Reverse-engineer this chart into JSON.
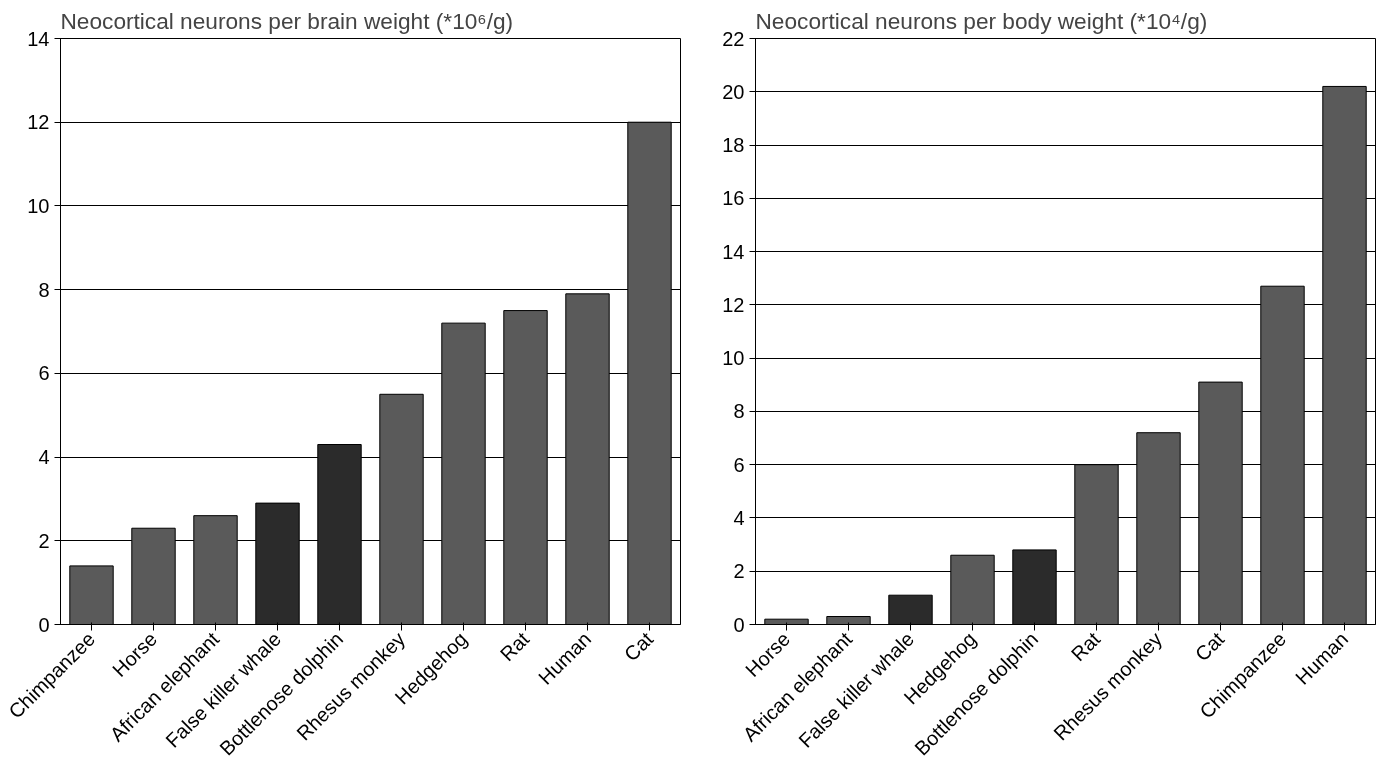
{
  "chart_data": [
    {
      "type": "bar",
      "title": "Neocortical neurons per brain weight (*10⁶/g)",
      "categories": [
        "Chimpanzee",
        "Horse",
        "African elephant",
        "False killer whale",
        "Bottlenose dolphin",
        "Rhesus monkey",
        "Hedgehog",
        "Rat",
        "Human",
        "Cat"
      ],
      "values": [
        1.4,
        2.3,
        2.6,
        2.9,
        4.3,
        5.5,
        7.2,
        7.5,
        7.9,
        12.0
      ],
      "colors": [
        "#5a5a5a",
        "#5a5a5a",
        "#5a5a5a",
        "#2b2b2b",
        "#2b2b2b",
        "#5a5a5a",
        "#5a5a5a",
        "#5a5a5a",
        "#5a5a5a",
        "#5a5a5a"
      ],
      "ylim": [
        0,
        14
      ],
      "yticks": [
        0,
        2,
        4,
        6,
        8,
        10,
        12,
        14
      ],
      "grid": "y"
    },
    {
      "type": "bar",
      "title": "Neocortical neurons per body weight (*10⁴/g)",
      "categories": [
        "Horse",
        "African elephant",
        "False killer whale",
        "Hedgehog",
        "Bottlenose dolphin",
        "Rat",
        "Rhesus monkey",
        "Cat",
        "Chimpanzee",
        "Human"
      ],
      "values": [
        0.2,
        0.3,
        1.1,
        2.6,
        2.8,
        6.0,
        7.2,
        9.1,
        12.7,
        20.2
      ],
      "colors": [
        "#5a5a5a",
        "#5a5a5a",
        "#2b2b2b",
        "#5a5a5a",
        "#2b2b2b",
        "#5a5a5a",
        "#5a5a5a",
        "#5a5a5a",
        "#5a5a5a",
        "#5a5a5a"
      ],
      "ylim": [
        0,
        22
      ],
      "yticks": [
        0,
        2,
        4,
        6,
        8,
        10,
        12,
        14,
        16,
        18,
        20,
        22
      ],
      "grid": "y"
    }
  ]
}
